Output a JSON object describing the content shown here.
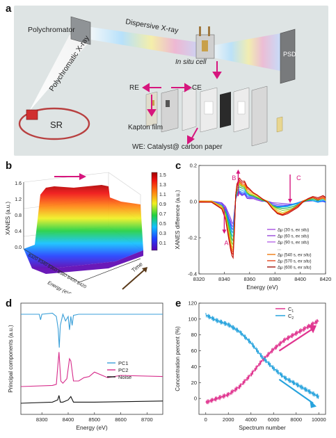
{
  "panels": {
    "a": {
      "letter": "a",
      "labels": {
        "polychromator": "Polychromator",
        "dispersive": "Dispersive X-ray",
        "insitu": "In situ cell",
        "psd": "PSD",
        "polychromatic": "Polychromatic X-ray",
        "sr": "SR",
        "re": "RE",
        "ce": "CE",
        "kapton": "Kapton film",
        "we": "WE: Catalyst@ carbon paper"
      },
      "colors": {
        "bg": "#dde3e3",
        "arrow": "#d6157d"
      }
    },
    "b": {
      "letter": "b",
      "ylabel": "XANES (a.u.)",
      "xlabel": "Energy (eV)",
      "timelabel": "Time",
      "yticks": [
        "1.6",
        "1.2",
        "0.8",
        "0.4",
        "0.0"
      ],
      "xticks": [
        "8320",
        "8340",
        "8360",
        "8380",
        "8400",
        "8420"
      ],
      "colorbar": [
        "1.5",
        "1.3",
        "1.1",
        "0.9",
        "0.7",
        "0.5",
        "0.3",
        "0.1"
      ]
    },
    "c": {
      "letter": "c",
      "ylabel": "XANES difference (a.u.)",
      "xlabel": "Energy (eV)",
      "annotations": [
        "A",
        "B",
        "C"
      ],
      "legend": [
        {
          "pre": "Δμ (30 s, ",
          "em": "ex situ",
          "post": ")",
          "color": "#a64fe0"
        },
        {
          "pre": "Δμ (60 s, ",
          "em": "ex situ",
          "post": ")",
          "color": "#9848d8"
        },
        {
          "pre": "Δμ (90 s, ",
          "em": "ex situ",
          "post": ")",
          "color": "#b765e6"
        },
        {
          "pre": "...",
          "em": "",
          "post": "",
          "color": ""
        },
        {
          "pre": "Δμ (540 s, ",
          "em": "ex situ",
          "post": ")",
          "color": "#f07a10"
        },
        {
          "pre": "Δμ (570 s, ",
          "em": "ex situ",
          "post": ")",
          "color": "#e8451a"
        },
        {
          "pre": "Δμ (600 s, ",
          "em": "ex situ",
          "post": ")",
          "color": "#a0140a"
        }
      ]
    },
    "d": {
      "letter": "d",
      "ylabel": "Principal components (a.u.)",
      "xlabel": "Energy (eV)",
      "legend": [
        {
          "name": "PC1",
          "color": "#3a9fd8"
        },
        {
          "name": "PC2",
          "color": "#d62a8a"
        },
        {
          "name": "Noise",
          "color": "#111111"
        }
      ]
    },
    "e": {
      "letter": "e",
      "ylabel": "Concentration percent (%)",
      "xlabel": "Spectrum number",
      "legend": [
        {
          "name": "C",
          "sub": "1",
          "color": "#e0348f"
        },
        {
          "name": "C",
          "sub": "2",
          "color": "#27a3dd"
        }
      ]
    }
  },
  "chart_data": [
    {
      "type": "line",
      "panel": "c",
      "xlabel": "Energy (eV)",
      "ylabel": "XANES difference (a.u.)",
      "xlim": [
        8320,
        8420
      ],
      "ylim": [
        -0.4,
        0.2
      ],
      "xticks": [
        8320,
        8340,
        8360,
        8380,
        8400,
        8420
      ],
      "yticks": [
        -0.4,
        -0.2,
        0.0,
        0.2
      ],
      "x": [
        8320,
        8330,
        8338,
        8341,
        8343,
        8345,
        8346,
        8347,
        8348,
        8349,
        8350,
        8352,
        8354,
        8356,
        8358,
        8360,
        8363,
        8366,
        8370,
        8374,
        8378,
        8382,
        8386,
        8390,
        8394,
        8398,
        8402,
        8406,
        8410,
        8414,
        8418,
        8420
      ],
      "series": [
        {
          "values": [
            0,
            0,
            -0.01,
            -0.03,
            -0.06,
            -0.09,
            -0.11,
            -0.12,
            -0.05,
            0.01,
            0.03,
            0.04,
            0.03,
            0.04,
            0.02,
            0.02,
            0.02,
            0.01,
            0.0,
            0.0,
            -0.01,
            -0.01,
            -0.01,
            -0.01,
            -0.01,
            -0.01,
            0.0,
            0.0,
            0.0,
            0.0,
            0.0,
            0.0
          ],
          "color": "#8a3fe0"
        },
        {
          "values": [
            0,
            0,
            -0.02,
            -0.05,
            -0.1,
            -0.15,
            -0.18,
            -0.19,
            -0.09,
            0.02,
            0.05,
            0.07,
            0.06,
            0.06,
            0.04,
            0.03,
            0.03,
            0.02,
            0.01,
            0.0,
            -0.02,
            -0.03,
            -0.03,
            -0.03,
            -0.02,
            -0.01,
            0.0,
            0.01,
            0.01,
            0.0,
            0.01,
            0.0
          ],
          "color": "#3050ff"
        },
        {
          "values": [
            0,
            0,
            -0.03,
            -0.08,
            -0.15,
            -0.22,
            -0.25,
            -0.26,
            -0.13,
            0.03,
            0.08,
            0.1,
            0.09,
            0.09,
            0.06,
            0.05,
            0.04,
            0.03,
            0.01,
            0.0,
            -0.03,
            -0.05,
            -0.06,
            -0.05,
            -0.04,
            -0.02,
            0.0,
            0.01,
            0.02,
            0.01,
            0.02,
            0.01
          ],
          "color": "#18b050"
        },
        {
          "values": [
            0,
            0,
            -0.04,
            -0.1,
            -0.19,
            -0.27,
            -0.3,
            -0.31,
            -0.16,
            0.04,
            0.1,
            0.13,
            0.11,
            0.11,
            0.08,
            0.07,
            0.05,
            0.04,
            0.02,
            0.0,
            -0.04,
            -0.07,
            -0.08,
            -0.07,
            -0.05,
            -0.03,
            0.0,
            0.02,
            0.03,
            0.02,
            0.03,
            0.02
          ],
          "color": "#c0100a"
        }
      ]
    },
    {
      "type": "line",
      "panel": "d",
      "xlabel": "Energy (eV)",
      "ylabel": "Principal components (a.u.)",
      "xlim": [
        8220,
        8760
      ],
      "xticks": [
        8300,
        8400,
        8500,
        8600,
        8700
      ],
      "series": [
        {
          "name": "PC1",
          "x": [
            8220,
            8290,
            8295,
            8300,
            8340,
            8355,
            8362,
            8366,
            8370,
            8380,
            8390,
            8400,
            8405,
            8410,
            8415,
            8420,
            8440,
            8500,
            8600,
            8760
          ],
          "values": [
            0.9,
            0.9,
            0.85,
            0.9,
            0.91,
            0.88,
            0.77,
            0.6,
            0.8,
            0.9,
            0.84,
            0.88,
            0.76,
            0.88,
            0.8,
            0.89,
            0.9,
            0.9,
            0.9,
            0.9
          ]
        },
        {
          "name": "PC2",
          "x": [
            8220,
            8340,
            8355,
            8360,
            8365,
            8372,
            8380,
            8395,
            8405,
            8410,
            8420,
            8440,
            8460,
            8480,
            8500,
            8550,
            8600,
            8760
          ],
          "values": [
            0.25,
            0.26,
            0.27,
            0.42,
            0.56,
            0.3,
            0.28,
            0.32,
            0.5,
            0.48,
            0.3,
            0.3,
            0.33,
            0.34,
            0.38,
            0.33,
            0.35,
            0.34
          ]
        },
        {
          "name": "Noise",
          "x": [
            8220,
            8340,
            8360,
            8365,
            8370,
            8380,
            8400,
            8410,
            8420,
            8500,
            8760
          ],
          "values": [
            0.1,
            0.11,
            0.13,
            0.17,
            0.11,
            0.11,
            0.13,
            0.16,
            0.11,
            0.11,
            0.12
          ]
        }
      ]
    },
    {
      "type": "line",
      "panel": "e",
      "xlabel": "Spectrum number",
      "ylabel": "Concentration percent (%)",
      "xlim": [
        -600,
        10600
      ],
      "ylim": [
        -20,
        120
      ],
      "xticks": [
        0,
        2000,
        4000,
        6000,
        8000,
        10000
      ],
      "yticks": [
        0,
        20,
        40,
        60,
        80,
        100,
        120
      ],
      "x": [
        0,
        1000,
        2000,
        3000,
        4000,
        5000,
        6000,
        7000,
        8000,
        9000,
        10000
      ],
      "series": [
        {
          "name": "C1",
          "values": [
            -5,
            0,
            5,
            15,
            30,
            48,
            62,
            74,
            82,
            90,
            98
          ]
        },
        {
          "name": "C2",
          "values": [
            105,
            98,
            93,
            84,
            70,
            52,
            38,
            26,
            18,
            10,
            2
          ]
        }
      ]
    }
  ]
}
